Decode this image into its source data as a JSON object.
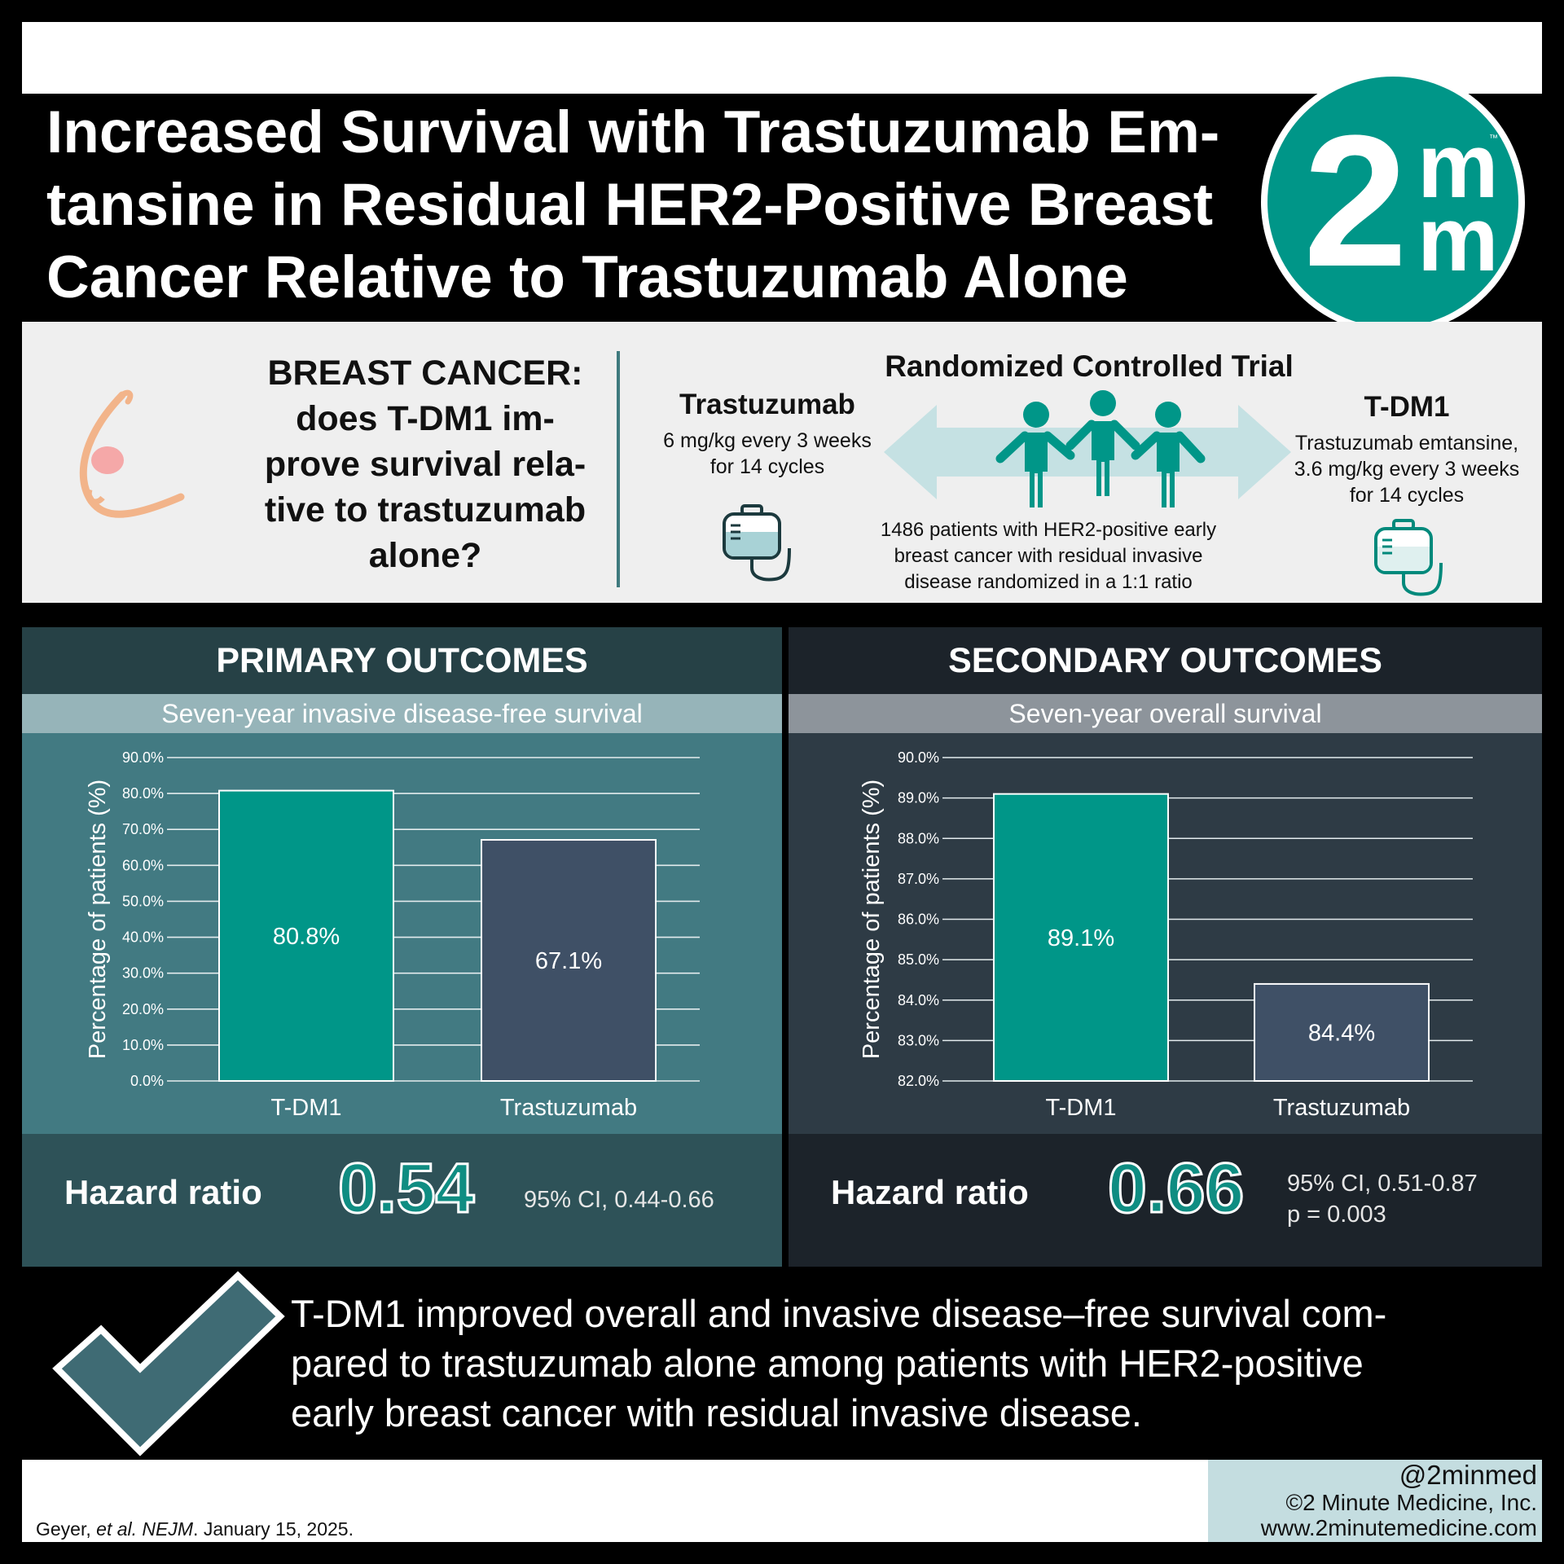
{
  "title": "Increased Survival with Trastuzumab Emtansine in Residual HER2-Positive Breast Cancer Relative to Trastuzumab Alone",
  "title_lines": [
    "Increased Survival with Trastuzumab Em-",
    "tansine in Residual HER2-Positive Breast",
    "Cancer Relative to Trastuzumab Alone"
  ],
  "logo": {
    "two": "2",
    "m": "m",
    "tm": "™"
  },
  "question_lines": [
    "BREAST CANCER:",
    "does T-DM1 im-",
    "prove survival rela-",
    "tive to trastuzumab",
    "alone?"
  ],
  "rct": {
    "title": "Randomized Controlled Trial",
    "arm_left": {
      "name": "Trastuzumab",
      "desc_lines": [
        "6 mg/kg every 3 weeks",
        "for 14 cycles"
      ]
    },
    "arm_right": {
      "name": "T-DM1",
      "desc_lines": [
        "Trastuzumab emtansine,",
        "3.6 mg/kg every 3 weeks",
        "for 14 cycles"
      ]
    },
    "patients_lines": [
      "1486 patients with HER2-positive early",
      "breast cancer with residual invasive",
      "disease randomized in a 1:1 ratio"
    ]
  },
  "colors": {
    "teal": "#009688",
    "slate": "#3f5066",
    "panel_primary": "#427a82",
    "panel_secondary": "#2e3b45"
  },
  "primary": {
    "heading": "PRIMARY OUTCOMES",
    "subheading": "Seven-year invasive disease-free survival",
    "hazard_label": "Hazard ratio",
    "hazard_value": "0.54",
    "ci_lines": [
      "95% CI, 0.44-0.66"
    ]
  },
  "secondary": {
    "heading": "SECONDARY OUTCOMES",
    "subheading": "Seven-year overall survival",
    "hazard_label": "Hazard ratio",
    "hazard_value": "0.66",
    "ci_lines": [
      "95% CI, 0.51-0.87",
      "p = 0.003"
    ]
  },
  "chart_data": [
    {
      "type": "bar",
      "title": "Seven-year invasive disease-free survival",
      "categories": [
        "T-DM1",
        "Trastuzumab"
      ],
      "values": [
        80.8,
        67.1
      ],
      "value_labels": [
        "80.8%",
        "67.1%"
      ],
      "ylabel": "Percentage of patients (%)",
      "ylim": [
        0,
        90
      ],
      "yticks": [
        "0.0%",
        "10.0%",
        "20.0%",
        "30.0%",
        "40.0%",
        "50.0%",
        "60.0%",
        "70.0%",
        "80.0%",
        "90.0%"
      ],
      "bar_colors": [
        "#009688",
        "#3f5066"
      ],
      "grid": true
    },
    {
      "type": "bar",
      "title": "Seven-year overall survival",
      "categories": [
        "T-DM1",
        "Trastuzumab"
      ],
      "values": [
        89.1,
        84.4
      ],
      "value_labels": [
        "89.1%",
        "84.4%"
      ],
      "ylabel": "Percentage of patients (%)",
      "ylim": [
        82,
        90
      ],
      "yticks": [
        "82.0%",
        "83.0%",
        "84.0%",
        "85.0%",
        "86.0%",
        "87.0%",
        "88.0%",
        "89.0%",
        "90.0%"
      ],
      "bar_colors": [
        "#009688",
        "#3f5066"
      ],
      "grid": true
    }
  ],
  "conclusion_lines": [
    "T-DM1 improved overall and invasive disease–free survival com-",
    "pared to trastuzumab alone among patients with HER2-positive",
    "early breast cancer with residual invasive disease."
  ],
  "citation": {
    "authors": "Geyer, ",
    "etal": "et al.",
    "journal": "NEJM",
    "date": ". January 15, 2025."
  },
  "credit": {
    "handle": "@2minmed",
    "copyright": "©2 Minute Medicine, Inc.",
    "url": "www.2minutemedicine.com"
  }
}
